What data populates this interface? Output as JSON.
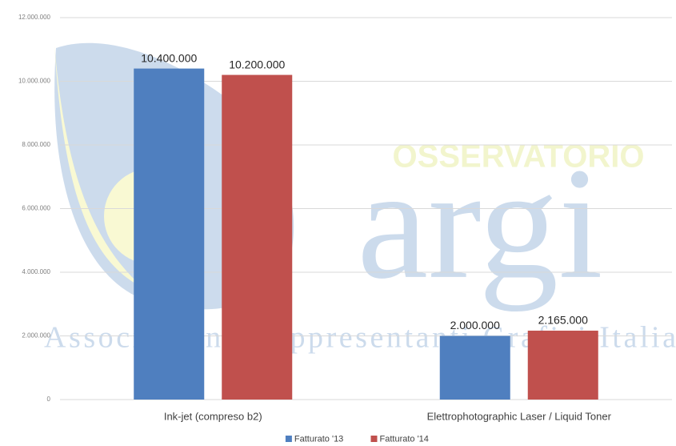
{
  "chart_data": {
    "type": "bar",
    "categories": [
      "Ink-jet (compreso b2)",
      "Elettrophotographic Laser / Liquid Toner"
    ],
    "series": [
      {
        "name": "Fatturato '13",
        "color": "#4f7fbf",
        "values": [
          10400000,
          2000000
        ],
        "value_labels": [
          "10.400.000",
          "2.000.000"
        ]
      },
      {
        "name": "Fatturato '14",
        "color": "#c0504d",
        "values": [
          10200000,
          2165000
        ],
        "value_labels": [
          "10.200.000",
          "2.165.000"
        ]
      }
    ],
    "ylim": [
      0,
      12000000
    ],
    "yticks": [
      0,
      {
        "value": 2000000,
        "label": "2.000.000"
      },
      {
        "value": 4000000,
        "label": "4.000.000"
      },
      {
        "value": 6000000,
        "label": "6.000.000"
      },
      {
        "value": 8000000,
        "label": "8.000.000"
      },
      {
        "value": 10000000,
        "label": "10.000.000"
      },
      {
        "value": 12000000,
        "label": "12.000.000"
      }
    ],
    "grid": true,
    "legend": "bottom"
  },
  "watermark": {
    "heading": "OSSERVATORIO",
    "logo": "argi",
    "association": "Associazione Rappresentanti Grafici Italia"
  }
}
